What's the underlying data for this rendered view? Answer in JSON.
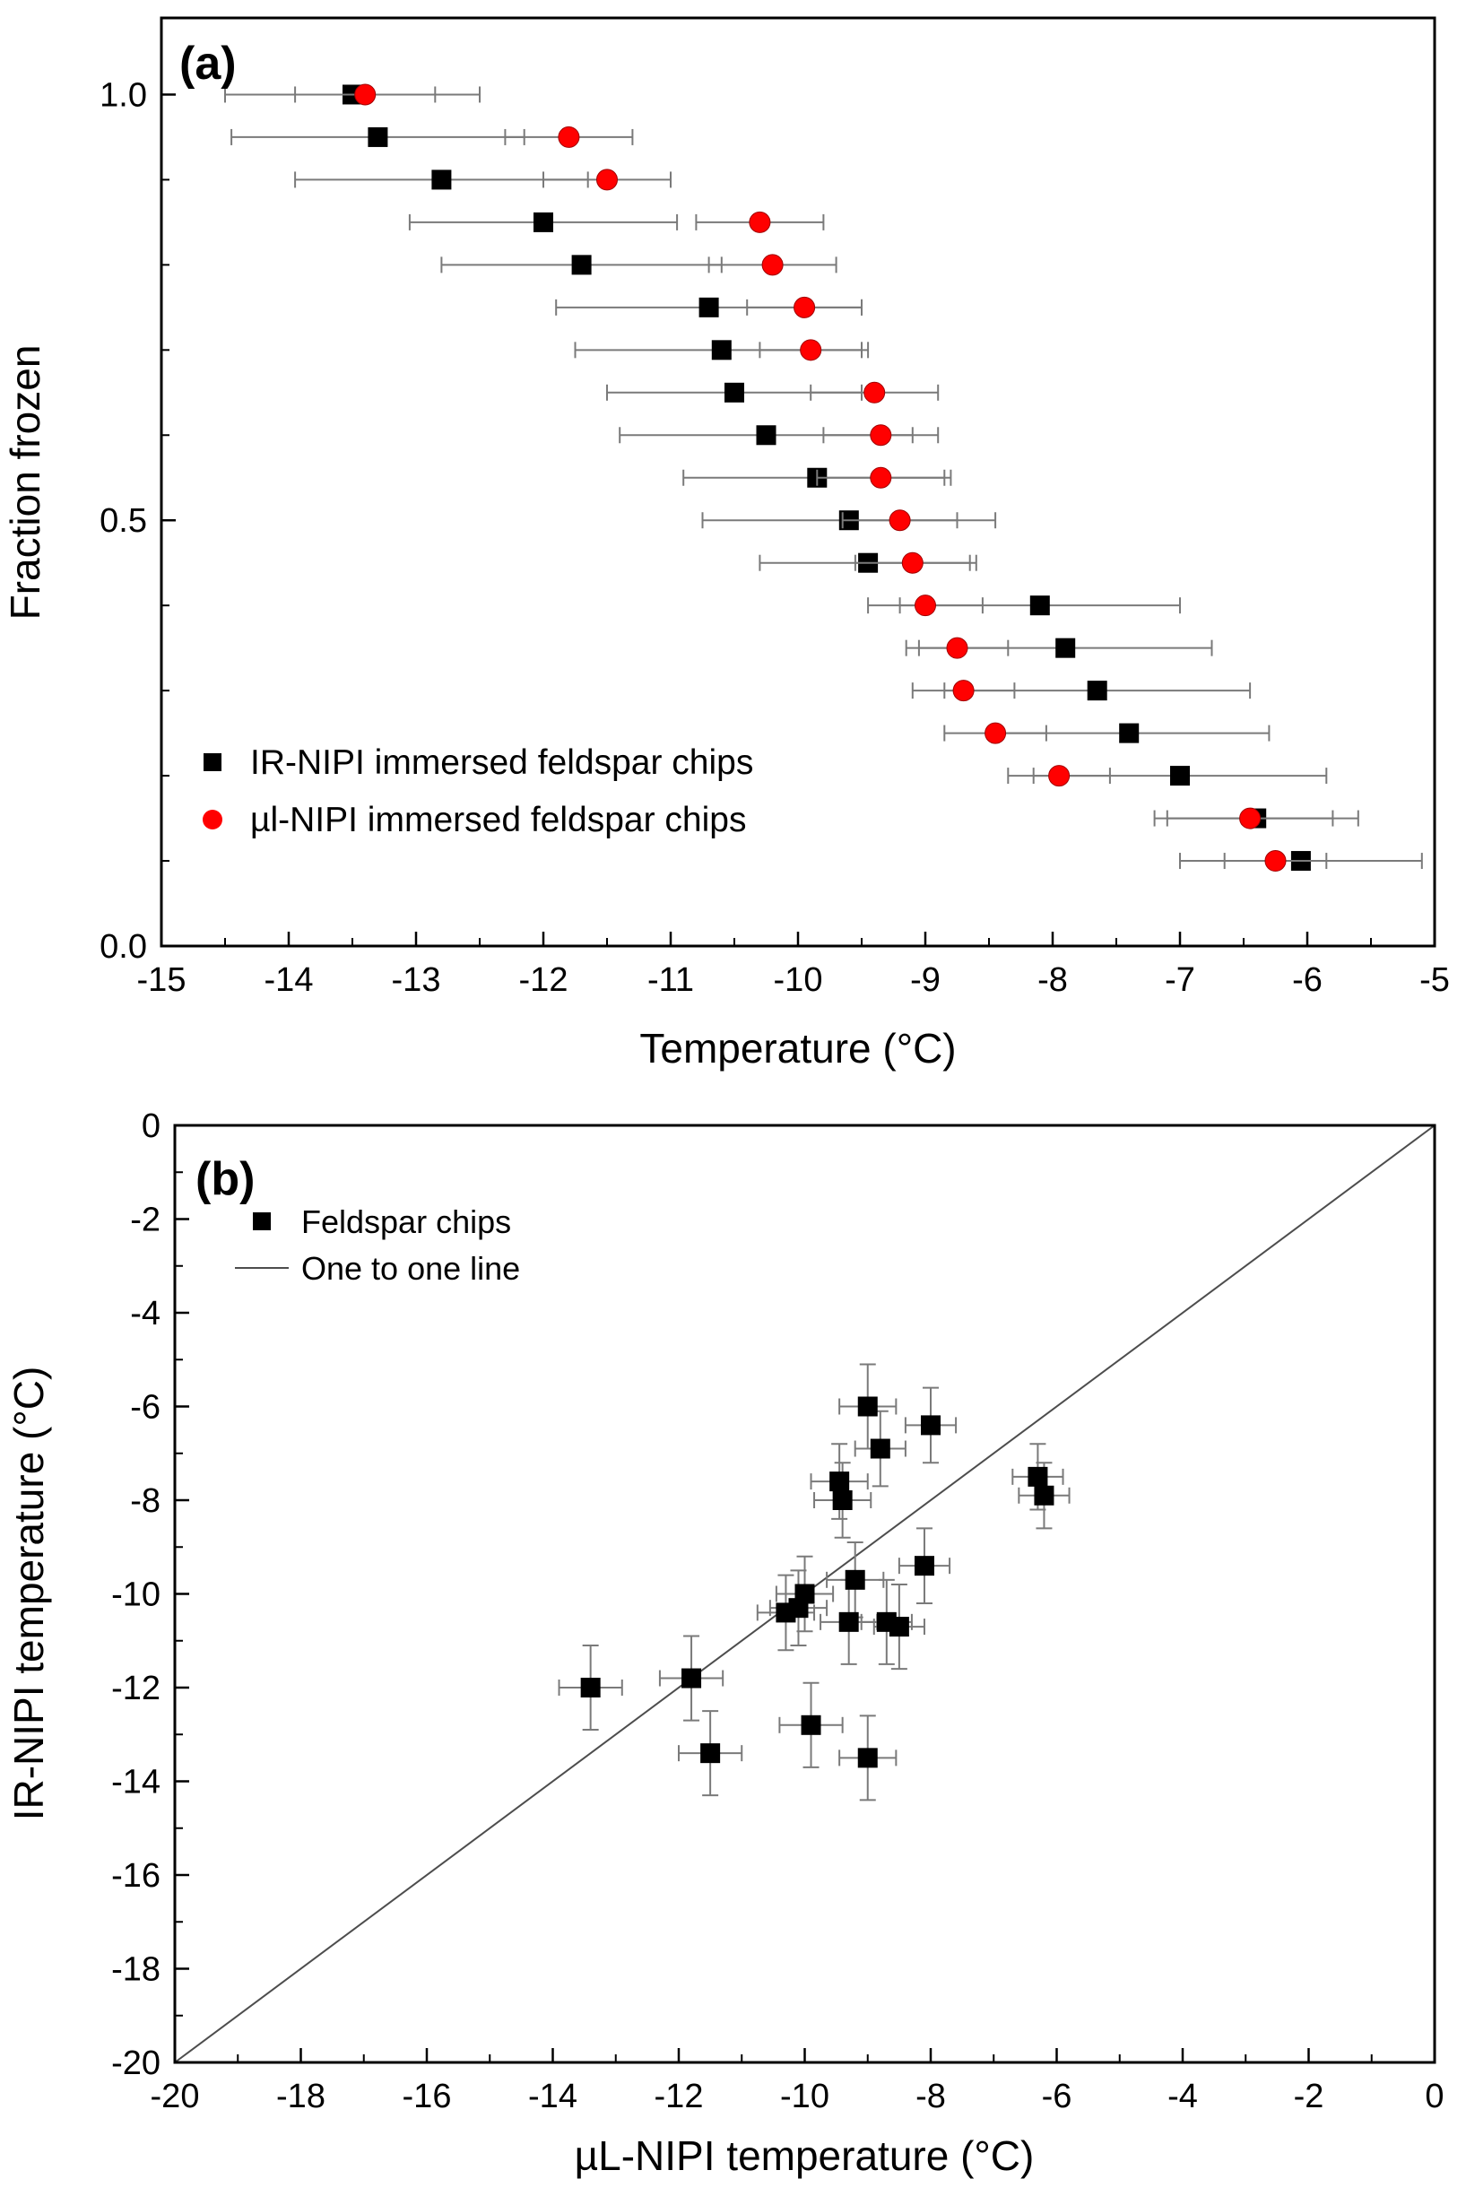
{
  "figure": {
    "background": "#ffffff",
    "panel_a_label": "(a)",
    "panel_b_label": "(b)"
  },
  "chart_data": [
    {
      "type": "scatter",
      "panel_label": "(a)",
      "title": "",
      "xlabel": "Temperature (°C)",
      "ylabel": "Fraction frozen",
      "xlim": [
        -15,
        -5
      ],
      "ylim": [
        0,
        1.09
      ],
      "grid": false,
      "legend_position": "lower-left-inside",
      "x_ticks": [
        -15,
        -14,
        -13,
        -12,
        -11,
        -10,
        -9,
        -8,
        -7,
        -6,
        -5
      ],
      "x_tick_labels": [
        "-15",
        "-14",
        "-13",
        "-12",
        "-11",
        "-10",
        "-9",
        "-8",
        "-7",
        "-6",
        "-5"
      ],
      "y_ticks": [
        0,
        0.5,
        1.0
      ],
      "y_tick_labels": [
        "0.0",
        "0.5",
        "1.0"
      ],
      "legend": [
        {
          "label": "IR-NIPI immersed feldspar chips",
          "marker": "square",
          "color": "#000000"
        },
        {
          "label": "µl-NIPI immersed feldspar chips",
          "marker": "circle",
          "color": "#ff0000"
        }
      ],
      "series": [
        {
          "name": "IR-NIPI immersed feldspar chips",
          "marker": "square",
          "color": "#000000",
          "error_color": "#7a7a7a",
          "points": [
            {
              "x": -13.5,
              "y": 1.0,
              "xerr": 1.0
            },
            {
              "x": -13.3,
              "y": 0.95,
              "xerr": 1.15
            },
            {
              "x": -12.8,
              "y": 0.9,
              "xerr": 1.15
            },
            {
              "x": -12.0,
              "y": 0.85,
              "xerr": 1.05
            },
            {
              "x": -11.7,
              "y": 0.8,
              "xerr": 1.1
            },
            {
              "x": -10.7,
              "y": 0.75,
              "xerr": 1.2
            },
            {
              "x": -10.6,
              "y": 0.7,
              "xerr": 1.15
            },
            {
              "x": -10.5,
              "y": 0.65,
              "xerr": 1.0
            },
            {
              "x": -10.25,
              "y": 0.6,
              "xerr": 1.15
            },
            {
              "x": -9.85,
              "y": 0.55,
              "xerr": 1.05
            },
            {
              "x": -9.6,
              "y": 0.5,
              "xerr": 1.15
            },
            {
              "x": -9.45,
              "y": 0.45,
              "xerr": 0.85
            },
            {
              "x": -8.1,
              "y": 0.4,
              "xerr": 1.1
            },
            {
              "x": -7.9,
              "y": 0.35,
              "xerr": 1.15
            },
            {
              "x": -7.65,
              "y": 0.3,
              "xerr": 1.2
            },
            {
              "x": -7.4,
              "y": 0.25,
              "xerr": 1.1
            },
            {
              "x": -7.0,
              "y": 0.2,
              "xerr": 1.15
            },
            {
              "x": -6.4,
              "y": 0.15,
              "xerr": 0.8
            },
            {
              "x": -6.05,
              "y": 0.1,
              "xerr": 0.95
            }
          ]
        },
        {
          "name": "µl-NIPI immersed feldspar chips",
          "marker": "circle",
          "color": "#ff0000",
          "error_color": "#7a7a7a",
          "points": [
            {
              "x": -13.4,
              "y": 1.0,
              "xerr": 0.55
            },
            {
              "x": -11.8,
              "y": 0.95,
              "xerr": 0.5
            },
            {
              "x": -11.5,
              "y": 0.9,
              "xerr": 0.5
            },
            {
              "x": -10.3,
              "y": 0.85,
              "xerr": 0.5
            },
            {
              "x": -10.2,
              "y": 0.8,
              "xerr": 0.5
            },
            {
              "x": -9.95,
              "y": 0.75,
              "xerr": 0.45
            },
            {
              "x": -9.9,
              "y": 0.7,
              "xerr": 0.4
            },
            {
              "x": -9.4,
              "y": 0.65,
              "xerr": 0.5
            },
            {
              "x": -9.35,
              "y": 0.6,
              "xerr": 0.45
            },
            {
              "x": -9.35,
              "y": 0.55,
              "xerr": 0.5
            },
            {
              "x": -9.2,
              "y": 0.5,
              "xerr": 0.45
            },
            {
              "x": -9.1,
              "y": 0.45,
              "xerr": 0.45
            },
            {
              "x": -9.0,
              "y": 0.4,
              "xerr": 0.45
            },
            {
              "x": -8.75,
              "y": 0.35,
              "xerr": 0.4
            },
            {
              "x": -8.7,
              "y": 0.3,
              "xerr": 0.4
            },
            {
              "x": -8.45,
              "y": 0.25,
              "xerr": 0.4
            },
            {
              "x": -7.95,
              "y": 0.2,
              "xerr": 0.4
            },
            {
              "x": -6.45,
              "y": 0.15,
              "xerr": 0.65
            },
            {
              "x": -6.25,
              "y": 0.1,
              "xerr": 0.4
            }
          ]
        }
      ]
    },
    {
      "type": "scatter",
      "panel_label": "(b)",
      "title": "",
      "xlabel": "µL-NIPI temperature (°C)",
      "ylabel": "IR-NIPI temperature (°C)",
      "xlim": [
        -20,
        0
      ],
      "ylim": [
        -20,
        0
      ],
      "grid": false,
      "legend_position": "upper-left-inside",
      "x_ticks": [
        -20,
        -18,
        -16,
        -14,
        -12,
        -10,
        -8,
        -6,
        -4,
        -2,
        0
      ],
      "x_tick_labels": [
        "-20",
        "-18",
        "-16",
        "-14",
        "-12",
        "-10",
        "-8",
        "-6",
        "-4",
        "-2",
        "0"
      ],
      "y_ticks": [
        -20,
        -18,
        -16,
        -14,
        -12,
        -10,
        -8,
        -6,
        -4,
        -2,
        0
      ],
      "y_tick_labels": [
        "-20",
        "-18",
        "-16",
        "-14",
        "-12",
        "-10",
        "-8",
        "-6",
        "-4",
        "-2",
        "0"
      ],
      "one_to_one_line": {
        "label": "One to one line",
        "color": "#4d4d4d"
      },
      "legend": [
        {
          "label": "Feldspar chips",
          "marker": "square",
          "color": "#000000"
        },
        {
          "label": "One to one line",
          "marker": "line",
          "color": "#4d4d4d"
        }
      ],
      "series": [
        {
          "name": "Feldspar chips",
          "marker": "square",
          "color": "#000000",
          "error_color": "#7a7a7a",
          "points": [
            {
              "x": -13.4,
              "y": -12.0,
              "xerr": 0.5,
              "yerr": 0.9
            },
            {
              "x": -11.8,
              "y": -11.8,
              "xerr": 0.5,
              "yerr": 0.9
            },
            {
              "x": -11.5,
              "y": -13.4,
              "xerr": 0.5,
              "yerr": 0.9
            },
            {
              "x": -10.3,
              "y": -10.4,
              "xerr": 0.45,
              "yerr": 0.8
            },
            {
              "x": -10.1,
              "y": -10.3,
              "xerr": 0.45,
              "yerr": 0.8
            },
            {
              "x": -10.0,
              "y": -10.0,
              "xerr": 0.45,
              "yerr": 0.8
            },
            {
              "x": -9.9,
              "y": -12.8,
              "xerr": 0.5,
              "yerr": 0.9
            },
            {
              "x": -9.45,
              "y": -7.6,
              "xerr": 0.45,
              "yerr": 0.8
            },
            {
              "x": -9.4,
              "y": -8.0,
              "xerr": 0.45,
              "yerr": 0.8
            },
            {
              "x": -9.3,
              "y": -10.6,
              "xerr": 0.45,
              "yerr": 0.9
            },
            {
              "x": -9.2,
              "y": -9.7,
              "xerr": 0.45,
              "yerr": 0.8
            },
            {
              "x": -9.0,
              "y": -6.0,
              "xerr": 0.45,
              "yerr": 0.9
            },
            {
              "x": -9.0,
              "y": -13.5,
              "xerr": 0.45,
              "yerr": 0.9
            },
            {
              "x": -8.8,
              "y": -6.9,
              "xerr": 0.4,
              "yerr": 0.8
            },
            {
              "x": -8.7,
              "y": -10.6,
              "xerr": 0.4,
              "yerr": 0.9
            },
            {
              "x": -8.5,
              "y": -10.7,
              "xerr": 0.4,
              "yerr": 0.9
            },
            {
              "x": -8.1,
              "y": -9.4,
              "xerr": 0.4,
              "yerr": 0.8
            },
            {
              "x": -8.0,
              "y": -6.4,
              "xerr": 0.4,
              "yerr": 0.8
            },
            {
              "x": -6.3,
              "y": -7.5,
              "xerr": 0.4,
              "yerr": 0.7
            },
            {
              "x": -6.2,
              "y": -7.9,
              "xerr": 0.4,
              "yerr": 0.7
            }
          ]
        }
      ]
    }
  ]
}
